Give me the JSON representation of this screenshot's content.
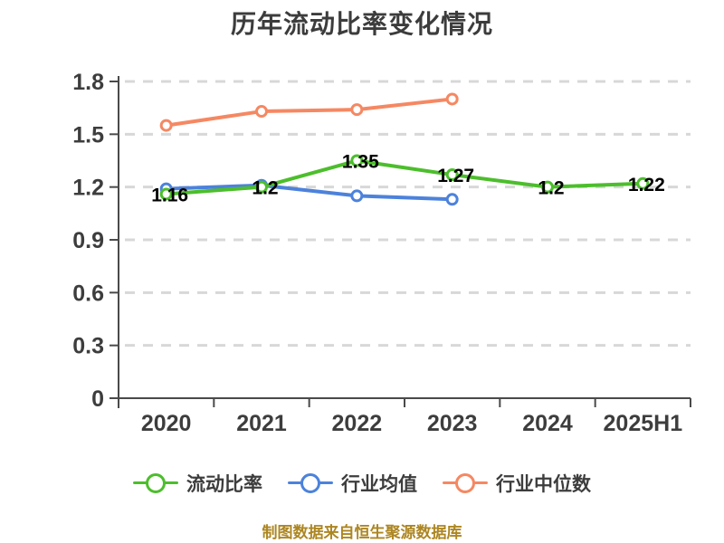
{
  "title": {
    "text": "历年流动比率变化情况",
    "color": "#3C3C3C"
  },
  "footer": {
    "text": "制图数据来自恒生聚源数据库",
    "color": "#AD8621"
  },
  "chart_data": {
    "type": "line",
    "title": "历年流动比率变化情况",
    "categories": [
      "2020",
      "2021",
      "2022",
      "2023",
      "2024",
      "2025H1"
    ],
    "series": [
      {
        "name": "流动比率",
        "color": "#4CBE2C",
        "values": [
          1.16,
          1.2,
          1.35,
          1.27,
          1.2,
          1.22
        ],
        "point_labels": [
          "1.16",
          "1.2",
          "1.35",
          "1.27",
          "1.2",
          "1.22"
        ]
      },
      {
        "name": "行业均值",
        "color": "#4C82DB",
        "values": [
          1.19,
          1.21,
          1.15,
          1.13,
          null,
          null
        ],
        "point_labels": null
      },
      {
        "name": "行业中位数",
        "color": "#F58862",
        "values": [
          1.55,
          1.63,
          1.64,
          1.7,
          null,
          null
        ],
        "point_labels": null
      }
    ],
    "xlabel": "",
    "ylabel": "",
    "ylim": [
      0,
      1.8
    ],
    "yticks": [
      "0",
      "0.3",
      "0.6",
      "0.9",
      "1.2",
      "1.5",
      "1.8"
    ],
    "grid": "horizontal-dashed",
    "legend_position": "bottom",
    "marker_style": "white-filled-circle",
    "colors": {
      "axis": "#4A4A4A",
      "grid": "#D8D8D8",
      "tick_text": "#3D3D3D",
      "data_label": "#000000"
    }
  }
}
